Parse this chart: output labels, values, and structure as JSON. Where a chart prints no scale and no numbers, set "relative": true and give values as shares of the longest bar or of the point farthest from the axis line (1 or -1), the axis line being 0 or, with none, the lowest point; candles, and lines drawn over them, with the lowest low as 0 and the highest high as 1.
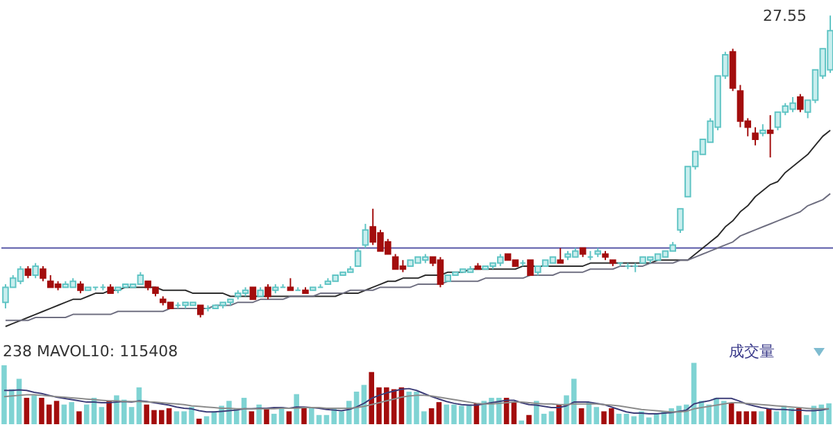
{
  "chart_data": [
    {
      "type": "candlestick",
      "relative": true,
      "categories": [
        null,
        null,
        null,
        null,
        null,
        null,
        null,
        null,
        null,
        null,
        null,
        null,
        null,
        null,
        null,
        null,
        null,
        null,
        null,
        null,
        null,
        null,
        null,
        null,
        null,
        null,
        null,
        null,
        null,
        null,
        null,
        null,
        null,
        null,
        null,
        null,
        null,
        null,
        null,
        null,
        null,
        null,
        null,
        null,
        null,
        null,
        null,
        null,
        null,
        null,
        null,
        null,
        null,
        null,
        null,
        null,
        null,
        null,
        null,
        null,
        null,
        null,
        null,
        null,
        null,
        null,
        null,
        null,
        null,
        null,
        null,
        null,
        null,
        null,
        null,
        null,
        null,
        null,
        null,
        null,
        null,
        null,
        null,
        null,
        null,
        null,
        null,
        null,
        null,
        null,
        null,
        null,
        null,
        null,
        null,
        null,
        null,
        null,
        null,
        null,
        null,
        null,
        null,
        null,
        null,
        null,
        null,
        null,
        null,
        null,
        null
      ],
      "ohlc": [
        [
          0.05,
          0.11,
          0.03,
          0.1
        ],
        [
          0.1,
          0.14,
          0.1,
          0.13
        ],
        [
          0.12,
          0.17,
          0.11,
          0.16
        ],
        [
          0.16,
          0.17,
          0.13,
          0.14
        ],
        [
          0.14,
          0.18,
          0.13,
          0.17
        ],
        [
          0.16,
          0.17,
          0.12,
          0.13
        ],
        [
          0.12,
          0.14,
          0.1,
          0.1
        ],
        [
          0.11,
          0.12,
          0.09,
          0.1
        ],
        [
          0.1,
          0.12,
          0.1,
          0.11
        ],
        [
          0.1,
          0.13,
          0.1,
          0.12
        ],
        [
          0.11,
          0.12,
          0.08,
          0.09
        ],
        [
          0.09,
          0.1,
          0.09,
          0.1
        ],
        [
          0.1,
          0.1,
          0.09,
          0.1
        ],
        [
          0.1,
          0.11,
          0.09,
          0.1
        ],
        [
          0.1,
          0.11,
          0.08,
          0.08
        ],
        [
          0.09,
          0.1,
          0.08,
          0.1
        ],
        [
          0.1,
          0.11,
          0.1,
          0.11
        ],
        [
          0.1,
          0.11,
          0.1,
          0.11
        ],
        [
          0.11,
          0.15,
          0.11,
          0.14
        ],
        [
          0.12,
          0.12,
          0.09,
          0.1
        ],
        [
          0.1,
          0.1,
          0.07,
          0.08
        ],
        [
          0.06,
          0.07,
          0.04,
          0.05
        ],
        [
          0.05,
          0.05,
          0.03,
          0.03
        ],
        [
          0.04,
          0.05,
          0.03,
          0.04
        ],
        [
          0.04,
          0.05,
          0.03,
          0.05
        ],
        [
          0.04,
          0.05,
          0.04,
          0.05
        ],
        [
          0.04,
          0.04,
          0.0,
          0.01
        ],
        [
          0.03,
          0.04,
          0.02,
          0.03
        ],
        [
          0.03,
          0.04,
          0.03,
          0.04
        ],
        [
          0.04,
          0.05,
          0.03,
          0.05
        ],
        [
          0.05,
          0.06,
          0.04,
          0.06
        ],
        [
          0.07,
          0.09,
          0.06,
          0.08
        ],
        [
          0.08,
          0.1,
          0.07,
          0.09
        ],
        [
          0.1,
          0.1,
          0.06,
          0.06
        ],
        [
          0.07,
          0.1,
          0.07,
          0.09
        ],
        [
          0.1,
          0.11,
          0.06,
          0.07
        ],
        [
          0.09,
          0.11,
          0.08,
          0.1
        ],
        [
          0.1,
          0.11,
          0.1,
          0.1
        ],
        [
          0.1,
          0.13,
          0.09,
          0.09
        ],
        [
          0.09,
          0.1,
          0.09,
          0.09
        ],
        [
          0.09,
          0.1,
          0.08,
          0.08
        ],
        [
          0.09,
          0.1,
          0.09,
          0.1
        ],
        [
          0.1,
          0.11,
          0.1,
          0.1
        ],
        [
          0.11,
          0.13,
          0.11,
          0.12
        ],
        [
          0.12,
          0.14,
          0.12,
          0.14
        ],
        [
          0.14,
          0.15,
          0.14,
          0.15
        ],
        [
          0.15,
          0.17,
          0.15,
          0.16
        ],
        [
          0.17,
          0.23,
          0.17,
          0.22
        ],
        [
          0.24,
          0.31,
          0.23,
          0.29
        ],
        [
          0.3,
          0.36,
          0.24,
          0.25
        ],
        [
          0.28,
          0.29,
          0.22,
          0.22
        ],
        [
          0.25,
          0.26,
          0.21,
          0.21
        ],
        [
          0.2,
          0.21,
          0.16,
          0.16
        ],
        [
          0.17,
          0.19,
          0.15,
          0.16
        ],
        [
          0.17,
          0.19,
          0.17,
          0.19
        ],
        [
          0.18,
          0.2,
          0.18,
          0.2
        ],
        [
          0.19,
          0.21,
          0.18,
          0.2
        ],
        [
          0.2,
          0.2,
          0.17,
          0.18
        ],
        [
          0.19,
          0.2,
          0.1,
          0.11
        ],
        [
          0.12,
          0.14,
          0.12,
          0.14
        ],
        [
          0.14,
          0.15,
          0.14,
          0.15
        ],
        [
          0.15,
          0.16,
          0.15,
          0.16
        ],
        [
          0.15,
          0.17,
          0.15,
          0.16
        ],
        [
          0.17,
          0.18,
          0.16,
          0.16
        ],
        [
          0.16,
          0.17,
          0.16,
          0.17
        ],
        [
          0.17,
          0.18,
          0.16,
          0.18
        ],
        [
          0.18,
          0.21,
          0.17,
          0.2
        ],
        [
          0.21,
          0.21,
          0.19,
          0.19
        ],
        [
          0.19,
          0.19,
          0.17,
          0.17
        ],
        [
          0.18,
          0.19,
          0.17,
          0.18
        ],
        [
          0.19,
          0.19,
          0.14,
          0.14
        ],
        [
          0.15,
          0.17,
          0.14,
          0.17
        ],
        [
          0.17,
          0.19,
          0.17,
          0.19
        ],
        [
          0.18,
          0.2,
          0.18,
          0.2
        ],
        [
          0.19,
          0.23,
          0.18,
          0.18
        ],
        [
          0.2,
          0.22,
          0.19,
          0.21
        ],
        [
          0.2,
          0.23,
          0.2,
          0.22
        ],
        [
          0.23,
          0.23,
          0.2,
          0.21
        ],
        [
          0.2,
          0.22,
          0.19,
          0.2
        ],
        [
          0.21,
          0.23,
          0.2,
          0.22
        ],
        [
          0.21,
          0.22,
          0.19,
          0.2
        ],
        [
          0.19,
          0.19,
          0.17,
          0.18
        ],
        [
          0.18,
          0.18,
          0.17,
          0.18
        ],
        [
          0.17,
          0.18,
          0.16,
          0.17
        ],
        [
          0.17,
          0.18,
          0.15,
          0.17
        ],
        [
          0.18,
          0.2,
          0.18,
          0.2
        ],
        [
          0.19,
          0.2,
          0.18,
          0.2
        ],
        [
          0.19,
          0.21,
          0.19,
          0.21
        ],
        [
          0.2,
          0.22,
          0.2,
          0.22
        ],
        [
          0.22,
          0.25,
          0.22,
          0.24
        ],
        [
          0.29,
          0.36,
          0.28,
          0.36
        ],
        [
          0.4,
          0.5,
          0.4,
          0.5
        ],
        [
          0.5,
          0.55,
          0.49,
          0.55
        ],
        [
          0.54,
          0.59,
          0.54,
          0.59
        ],
        [
          0.58,
          0.66,
          0.58,
          0.65
        ],
        [
          0.63,
          0.8,
          0.62,
          0.8
        ],
        [
          0.8,
          0.88,
          0.79,
          0.87
        ],
        [
          0.88,
          0.89,
          0.75,
          0.76
        ],
        [
          0.75,
          0.77,
          0.63,
          0.65
        ],
        [
          0.65,
          0.66,
          0.6,
          0.63
        ],
        [
          0.61,
          0.63,
          0.57,
          0.59
        ],
        [
          0.61,
          0.64,
          0.6,
          0.62
        ],
        [
          0.62,
          0.67,
          0.53,
          0.61
        ],
        [
          0.63,
          0.68,
          0.62,
          0.68
        ],
        [
          0.68,
          0.71,
          0.67,
          0.7
        ],
        [
          0.69,
          0.73,
          0.68,
          0.71
        ],
        [
          0.73,
          0.74,
          0.68,
          0.69
        ],
        [
          0.68,
          0.72,
          0.66,
          0.72
        ],
        [
          0.72,
          0.82,
          0.71,
          0.82
        ],
        [
          0.8,
          0.89,
          0.79,
          0.89
        ],
        [
          0.82,
          1.0,
          0.81,
          0.95
        ]
      ],
      "series": [
        {
          "type": "line",
          "color": "#2b2b2b",
          "values": [
            -0.03,
            -0.02,
            -0.01,
            0.0,
            0.01,
            0.02,
            0.03,
            0.04,
            0.05,
            0.06,
            0.06,
            0.07,
            0.08,
            0.08,
            0.09,
            0.09,
            0.1,
            0.1,
            0.1,
            0.1,
            0.1,
            0.09,
            0.09,
            0.09,
            0.09,
            0.08,
            0.08,
            0.08,
            0.08,
            0.08,
            0.07,
            0.07,
            0.07,
            0.07,
            0.07,
            0.07,
            0.07,
            0.07,
            0.07,
            0.07,
            0.07,
            0.07,
            0.07,
            0.07,
            0.07,
            0.08,
            0.08,
            0.08,
            0.09,
            0.1,
            0.11,
            0.12,
            0.12,
            0.13,
            0.13,
            0.13,
            0.14,
            0.14,
            0.14,
            0.15,
            0.15,
            0.15,
            0.16,
            0.16,
            0.16,
            0.16,
            0.16,
            0.16,
            0.16,
            0.17,
            0.17,
            0.17,
            0.17,
            0.17,
            0.17,
            0.17,
            0.17,
            0.17,
            0.18,
            0.18,
            0.18,
            0.18,
            0.18,
            0.18,
            0.18,
            0.18,
            0.18,
            0.19,
            0.19,
            0.19,
            0.19,
            0.19,
            0.21,
            0.23,
            0.25,
            0.27,
            0.3,
            0.32,
            0.35,
            0.37,
            0.4,
            0.42,
            0.44,
            0.45,
            0.48,
            0.5,
            0.52,
            0.54,
            0.57,
            0.6,
            0.62
          ]
        },
        {
          "type": "line",
          "color": "#6e6e80",
          "values": [
            -0.01,
            -0.01,
            -0.01,
            -0.01,
            0.0,
            0.0,
            0.0,
            0.0,
            0.0,
            0.01,
            0.01,
            0.01,
            0.01,
            0.01,
            0.01,
            0.02,
            0.02,
            0.02,
            0.02,
            0.02,
            0.02,
            0.02,
            0.03,
            0.03,
            0.03,
            0.03,
            0.03,
            0.03,
            0.04,
            0.04,
            0.04,
            0.05,
            0.05,
            0.05,
            0.06,
            0.06,
            0.06,
            0.06,
            0.07,
            0.07,
            0.07,
            0.07,
            0.08,
            0.08,
            0.08,
            0.08,
            0.09,
            0.09,
            0.09,
            0.09,
            0.1,
            0.1,
            0.1,
            0.1,
            0.1,
            0.11,
            0.11,
            0.11,
            0.11,
            0.12,
            0.12,
            0.12,
            0.12,
            0.12,
            0.13,
            0.13,
            0.13,
            0.13,
            0.13,
            0.13,
            0.14,
            0.14,
            0.14,
            0.14,
            0.15,
            0.15,
            0.15,
            0.15,
            0.16,
            0.16,
            0.16,
            0.16,
            0.17,
            0.17,
            0.17,
            0.17,
            0.18,
            0.18,
            0.18,
            0.18,
            0.19,
            0.19,
            0.2,
            0.21,
            0.22,
            0.23,
            0.24,
            0.25,
            0.27,
            0.28,
            0.29,
            0.3,
            0.31,
            0.32,
            0.33,
            0.34,
            0.35,
            0.37,
            0.38,
            0.39,
            0.41
          ]
        }
      ],
      "ref_lines": [
        {
          "axis": "y",
          "value": 0.23,
          "color": "#5a5aa8"
        }
      ],
      "annotations": [
        "27.55"
      ]
    },
    {
      "type": "bar",
      "relative": true,
      "categories": [
        null,
        null,
        null,
        null,
        null,
        null,
        null,
        null,
        null,
        null,
        null,
        null,
        null,
        null,
        null,
        null,
        null,
        null,
        null,
        null,
        null,
        null,
        null,
        null,
        null,
        null,
        null,
        null,
        null,
        null,
        null,
        null,
        null,
        null,
        null,
        null,
        null,
        null,
        null,
        null,
        null,
        null,
        null,
        null,
        null,
        null,
        null,
        null,
        null,
        null,
        null,
        null,
        null,
        null,
        null,
        null,
        null,
        null,
        null,
        null,
        null,
        null,
        null,
        null,
        null,
        null,
        null,
        null,
        null,
        null,
        null,
        null,
        null,
        null,
        null,
        null,
        null,
        null,
        null,
        null,
        null,
        null,
        null,
        null,
        null,
        null,
        null,
        null,
        null,
        null,
        null,
        null,
        null,
        null,
        null,
        null,
        null,
        null,
        null,
        null,
        null,
        null,
        null,
        null,
        null,
        null,
        null,
        null,
        null,
        null,
        null
      ],
      "series": [
        {
          "type": "bar",
          "values": [
            0.96,
            0.57,
            0.74,
            0.43,
            0.47,
            0.43,
            0.32,
            0.38,
            0.32,
            0.36,
            0.21,
            0.32,
            0.43,
            0.28,
            0.38,
            0.47,
            0.4,
            0.28,
            0.6,
            0.32,
            0.23,
            0.23,
            0.26,
            0.21,
            0.21,
            0.28,
            0.09,
            0.13,
            0.21,
            0.3,
            0.38,
            0.26,
            0.43,
            0.21,
            0.32,
            0.26,
            0.17,
            0.28,
            0.21,
            0.49,
            0.28,
            0.28,
            0.15,
            0.15,
            0.26,
            0.21,
            0.38,
            0.53,
            0.64,
            0.85,
            0.6,
            0.6,
            0.57,
            0.6,
            0.53,
            0.53,
            0.21,
            0.26,
            0.36,
            0.32,
            0.32,
            0.3,
            0.32,
            0.34,
            0.38,
            0.43,
            0.43,
            0.43,
            0.36,
            0.06,
            0.15,
            0.38,
            0.17,
            0.21,
            0.32,
            0.47,
            0.74,
            0.26,
            0.36,
            0.28,
            0.21,
            0.26,
            0.17,
            0.17,
            0.13,
            0.21,
            0.11,
            0.17,
            0.21,
            0.26,
            0.3,
            0.32,
            1,
            0.38,
            0.32,
            0.43,
            0.38,
            0.34,
            0.21,
            0.21,
            0.21,
            0.21,
            0.26,
            0.21,
            0.3,
            0.26,
            0.26,
            0.15,
            0.3,
            0.32,
            0.34
          ],
          "colors": [
            "#7fd3d3",
            "#7fd3d3",
            "#7fd3d3",
            "#a30d0d",
            "#7fd3d3",
            "#a30d0d",
            "#a30d0d",
            "#a30d0d",
            "#7fd3d3",
            "#7fd3d3",
            "#a30d0d",
            "#7fd3d3",
            "#7fd3d3",
            "#7fd3d3",
            "#a30d0d",
            "#7fd3d3",
            "#7fd3d3",
            "#7fd3d3",
            "#7fd3d3",
            "#a30d0d",
            "#a30d0d",
            "#a30d0d",
            "#a30d0d",
            "#7fd3d3",
            "#7fd3d3",
            "#7fd3d3",
            "#a30d0d",
            "#7fd3d3",
            "#7fd3d3",
            "#7fd3d3",
            "#7fd3d3",
            "#7fd3d3",
            "#7fd3d3",
            "#a30d0d",
            "#7fd3d3",
            "#a30d0d",
            "#7fd3d3",
            "#7fd3d3",
            "#a30d0d",
            "#7fd3d3",
            "#a30d0d",
            "#7fd3d3",
            "#7fd3d3",
            "#7fd3d3",
            "#7fd3d3",
            "#7fd3d3",
            "#7fd3d3",
            "#7fd3d3",
            "#7fd3d3",
            "#a30d0d",
            "#a30d0d",
            "#a30d0d",
            "#a30d0d",
            "#a30d0d",
            "#7fd3d3",
            "#7fd3d3",
            "#7fd3d3",
            "#a30d0d",
            "#a30d0d",
            "#7fd3d3",
            "#7fd3d3",
            "#7fd3d3",
            "#7fd3d3",
            "#a30d0d",
            "#7fd3d3",
            "#7fd3d3",
            "#7fd3d3",
            "#a30d0d",
            "#a30d0d",
            "#7fd3d3",
            "#a30d0d",
            "#7fd3d3",
            "#7fd3d3",
            "#7fd3d3",
            "#a30d0d",
            "#7fd3d3",
            "#7fd3d3",
            "#a30d0d",
            "#7fd3d3",
            "#7fd3d3",
            "#a30d0d",
            "#a30d0d",
            "#7fd3d3",
            "#7fd3d3",
            "#7fd3d3",
            "#7fd3d3",
            "#7fd3d3",
            "#7fd3d3",
            "#7fd3d3",
            "#7fd3d3",
            "#7fd3d3",
            "#7fd3d3",
            "#7fd3d3",
            "#7fd3d3",
            "#7fd3d3",
            "#7fd3d3",
            "#7fd3d3",
            "#a30d0d",
            "#a30d0d",
            "#a30d0d",
            "#a30d0d",
            "#7fd3d3",
            "#a30d0d",
            "#7fd3d3",
            "#7fd3d3",
            "#7fd3d3",
            "#a30d0d",
            "#7fd3d3",
            "#7fd3d3",
            "#7fd3d3",
            "#7fd3d3"
          ]
        },
        {
          "type": "line",
          "color": "#3c3c78",
          "values": [
            0.55,
            0.55,
            0.56,
            0.55,
            0.52,
            0.5,
            0.47,
            0.44,
            0.42,
            0.4,
            0.38,
            0.36,
            0.36,
            0.35,
            0.35,
            0.36,
            0.37,
            0.36,
            0.38,
            0.37,
            0.35,
            0.33,
            0.31,
            0.28,
            0.26,
            0.25,
            0.22,
            0.2,
            0.2,
            0.21,
            0.22,
            0.23,
            0.25,
            0.25,
            0.26,
            0.26,
            0.27,
            0.27,
            0.26,
            0.28,
            0.28,
            0.27,
            0.26,
            0.24,
            0.23,
            0.22,
            0.24,
            0.28,
            0.34,
            0.42,
            0.47,
            0.51,
            0.54,
            0.57,
            0.58,
            0.55,
            0.5,
            0.45,
            0.41,
            0.37,
            0.34,
            0.32,
            0.31,
            0.31,
            0.33,
            0.35,
            0.37,
            0.39,
            0.39,
            0.35,
            0.32,
            0.31,
            0.29,
            0.27,
            0.27,
            0.3,
            0.36,
            0.36,
            0.36,
            0.34,
            0.32,
            0.28,
            0.24,
            0.2,
            0.18,
            0.18,
            0.17,
            0.17,
            0.18,
            0.19,
            0.21,
            0.23,
            0.33,
            0.36,
            0.38,
            0.42,
            0.42,
            0.42,
            0.38,
            0.33,
            0.3,
            0.27,
            0.25,
            0.24,
            0.24,
            0.23,
            0.23,
            0.22,
            0.22,
            0.23,
            0.25
          ]
        },
        {
          "type": "line",
          "color": "#8a8a8a",
          "values": [
            0.45,
            0.46,
            0.47,
            0.48,
            0.48,
            0.47,
            0.46,
            0.45,
            0.44,
            0.43,
            0.42,
            0.41,
            0.4,
            0.39,
            0.38,
            0.38,
            0.37,
            0.37,
            0.37,
            0.36,
            0.36,
            0.35,
            0.34,
            0.33,
            0.32,
            0.3,
            0.29,
            0.28,
            0.27,
            0.26,
            0.26,
            0.25,
            0.25,
            0.25,
            0.25,
            0.25,
            0.25,
            0.26,
            0.26,
            0.26,
            0.27,
            0.27,
            0.27,
            0.26,
            0.26,
            0.26,
            0.26,
            0.27,
            0.29,
            0.32,
            0.35,
            0.38,
            0.41,
            0.44,
            0.46,
            0.47,
            0.47,
            0.46,
            0.44,
            0.42,
            0.4,
            0.38,
            0.36,
            0.34,
            0.33,
            0.33,
            0.34,
            0.35,
            0.36,
            0.36,
            0.35,
            0.34,
            0.33,
            0.33,
            0.32,
            0.32,
            0.33,
            0.33,
            0.33,
            0.33,
            0.32,
            0.31,
            0.3,
            0.28,
            0.26,
            0.24,
            0.23,
            0.22,
            0.21,
            0.2,
            0.2,
            0.21,
            0.25,
            0.27,
            0.29,
            0.31,
            0.33,
            0.35,
            0.35,
            0.34,
            0.33,
            0.32,
            0.31,
            0.3,
            0.29,
            0.28,
            0.27,
            0.26,
            0.25,
            0.25,
            0.25
          ]
        }
      ],
      "annotations": [
        "238 MAVOL10: 115408",
        "成交量"
      ]
    }
  ]
}
